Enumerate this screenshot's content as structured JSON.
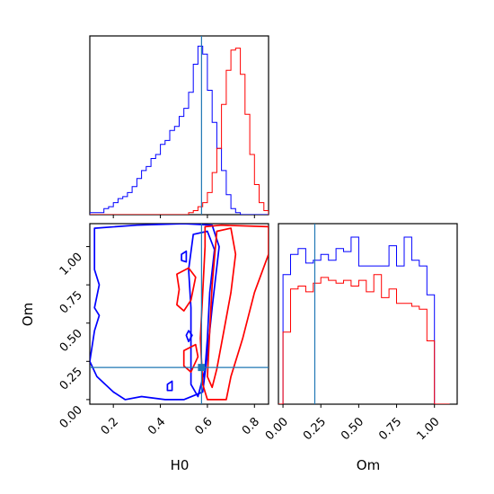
{
  "chart_data": {
    "type": "corner",
    "parameters": [
      "H0",
      "Om"
    ],
    "xlabels": {
      "H0": "H0",
      "Om": "Om"
    },
    "ylabels": {
      "Om": "Om"
    },
    "ranges": {
      "H0": [
        0.1,
        0.86
      ],
      "Om": [
        -0.03,
        1.15
      ]
    },
    "ticks": {
      "H0": [
        0.2,
        0.4,
        0.6,
        0.8
      ],
      "Om": [
        0.0,
        0.25,
        0.5,
        0.75,
        1.0
      ]
    },
    "tick_labels": {
      "H0": [
        "0.2",
        "0.4",
        "0.6",
        "0.8"
      ],
      "Om": [
        "0.00",
        "0.25",
        "0.50",
        "0.75",
        "1.00"
      ]
    },
    "truth": {
      "H0": 0.575,
      "Om": 0.21
    },
    "series_colors": [
      "#0000ff",
      "#ff0000"
    ],
    "truth_color": "#1f77b4",
    "hist_H0": {
      "edges": [
        0.1,
        0.12,
        0.14,
        0.16,
        0.18,
        0.2,
        0.22,
        0.24,
        0.26,
        0.28,
        0.3,
        0.32,
        0.34,
        0.36,
        0.38,
        0.4,
        0.42,
        0.44,
        0.46,
        0.48,
        0.5,
        0.52,
        0.54,
        0.56,
        0.58,
        0.6,
        0.62,
        0.64,
        0.66,
        0.68,
        0.7,
        0.72,
        0.74,
        0.76,
        0.78,
        0.8,
        0.82,
        0.84,
        0.86
      ],
      "series": [
        {
          "color": "#0000ff",
          "counts": [
            1,
            1,
            1,
            3,
            4,
            6,
            8,
            9,
            11,
            14,
            18,
            22,
            24,
            28,
            30,
            35,
            37,
            42,
            44,
            49,
            53,
            61,
            75,
            84,
            80,
            62,
            46,
            33,
            22,
            10,
            3,
            1,
            0,
            0,
            0,
            0,
            0,
            0
          ]
        },
        {
          "color": "#ff0000",
          "counts": [
            0,
            0,
            0,
            0,
            0,
            0,
            0,
            0,
            0,
            0,
            0,
            0,
            0,
            0,
            0,
            0,
            0,
            0,
            0,
            0,
            0,
            1,
            2,
            4,
            6,
            11,
            21,
            33,
            55,
            72,
            82,
            83,
            70,
            50,
            30,
            15,
            6,
            2
          ]
        }
      ]
    },
    "hist_Om": {
      "edges": [
        -0.05,
        0.0,
        0.05,
        0.1,
        0.15,
        0.2,
        0.25,
        0.3,
        0.35,
        0.4,
        0.45,
        0.5,
        0.55,
        0.6,
        0.65,
        0.7,
        0.75,
        0.8,
        0.85,
        0.9,
        0.95,
        1.0,
        1.05,
        1.1
      ],
      "series": [
        {
          "color": "#0000ff",
          "counts": [
            0,
            45,
            52,
            54,
            49,
            50,
            52,
            50,
            54,
            53,
            58,
            48,
            48,
            48,
            48,
            55,
            48,
            58,
            50,
            48,
            38,
            0,
            0
          ]
        },
        {
          "color": "#ff0000",
          "counts": [
            0,
            25,
            40,
            41,
            39,
            42,
            44,
            43,
            42,
            43,
            41,
            43,
            39,
            45,
            37,
            40,
            35,
            35,
            34,
            33,
            22,
            0,
            0
          ]
        }
      ]
    },
    "contours_2d": [
      {
        "color": "#0000ff",
        "level": "outer",
        "points": [
          [
            0.12,
            1.12
          ],
          [
            0.3,
            1.14
          ],
          [
            0.5,
            1.15
          ],
          [
            0.62,
            1.14
          ],
          [
            0.65,
            1.0
          ],
          [
            0.62,
            0.6
          ],
          [
            0.6,
            0.3
          ],
          [
            0.58,
            0.05
          ],
          [
            0.5,
            0.0
          ],
          [
            0.42,
            0.0
          ],
          [
            0.32,
            0.02
          ],
          [
            0.25,
            0.0
          ],
          [
            0.2,
            0.05
          ],
          [
            0.13,
            0.15
          ],
          [
            0.1,
            0.25
          ],
          [
            0.12,
            0.45
          ],
          [
            0.14,
            0.55
          ],
          [
            0.12,
            0.6
          ],
          [
            0.14,
            0.75
          ],
          [
            0.12,
            0.85
          ],
          [
            0.12,
            1.12
          ]
        ]
      },
      {
        "color": "#0000ff",
        "level": "inner",
        "points": [
          [
            0.54,
            1.08
          ],
          [
            0.6,
            1.1
          ],
          [
            0.63,
            0.98
          ],
          [
            0.61,
            0.7
          ],
          [
            0.6,
            0.4
          ],
          [
            0.59,
            0.2
          ],
          [
            0.56,
            0.02
          ],
          [
            0.53,
            0.1
          ],
          [
            0.53,
            0.3
          ],
          [
            0.53,
            0.6
          ],
          [
            0.52,
            0.85
          ],
          [
            0.54,
            1.08
          ]
        ]
      },
      {
        "color": "#0000ff",
        "level": "island",
        "points": [
          [
            0.49,
            0.95
          ],
          [
            0.51,
            0.97
          ],
          [
            0.51,
            0.9
          ],
          [
            0.49,
            0.91
          ],
          [
            0.49,
            0.95
          ]
        ]
      },
      {
        "color": "#0000ff",
        "level": "island",
        "points": [
          [
            0.52,
            0.45
          ],
          [
            0.535,
            0.42
          ],
          [
            0.52,
            0.38
          ],
          [
            0.51,
            0.42
          ],
          [
            0.52,
            0.45
          ]
        ]
      },
      {
        "color": "#0000ff",
        "level": "island",
        "points": [
          [
            0.43,
            0.1
          ],
          [
            0.45,
            0.12
          ],
          [
            0.45,
            0.06
          ],
          [
            0.43,
            0.06
          ],
          [
            0.43,
            0.1
          ]
        ]
      },
      {
        "color": "#ff0000",
        "level": "outer",
        "points": [
          [
            0.59,
            1.13
          ],
          [
            0.66,
            1.14
          ],
          [
            0.86,
            1.13
          ],
          [
            0.86,
            0.95
          ],
          [
            0.8,
            0.7
          ],
          [
            0.75,
            0.4
          ],
          [
            0.7,
            0.15
          ],
          [
            0.68,
            0.0
          ],
          [
            0.6,
            0.0
          ],
          [
            0.58,
            0.1
          ],
          [
            0.57,
            0.4
          ],
          [
            0.58,
            0.7
          ],
          [
            0.59,
            1.0
          ],
          [
            0.59,
            1.13
          ]
        ]
      },
      {
        "color": "#ff0000",
        "level": "inner",
        "points": [
          [
            0.64,
            1.1
          ],
          [
            0.7,
            1.12
          ],
          [
            0.72,
            0.95
          ],
          [
            0.7,
            0.7
          ],
          [
            0.67,
            0.45
          ],
          [
            0.64,
            0.2
          ],
          [
            0.62,
            0.08
          ],
          [
            0.6,
            0.15
          ],
          [
            0.61,
            0.45
          ],
          [
            0.62,
            0.75
          ],
          [
            0.64,
            1.1
          ]
        ]
      },
      {
        "color": "#ff0000",
        "level": "island",
        "points": [
          [
            0.47,
            0.82
          ],
          [
            0.52,
            0.86
          ],
          [
            0.55,
            0.8
          ],
          [
            0.53,
            0.65
          ],
          [
            0.5,
            0.58
          ],
          [
            0.47,
            0.62
          ],
          [
            0.48,
            0.72
          ],
          [
            0.47,
            0.82
          ]
        ]
      },
      {
        "color": "#ff0000",
        "level": "island",
        "points": [
          [
            0.5,
            0.32
          ],
          [
            0.55,
            0.36
          ],
          [
            0.56,
            0.28
          ],
          [
            0.53,
            0.18
          ],
          [
            0.5,
            0.22
          ],
          [
            0.5,
            0.32
          ]
        ]
      }
    ]
  }
}
